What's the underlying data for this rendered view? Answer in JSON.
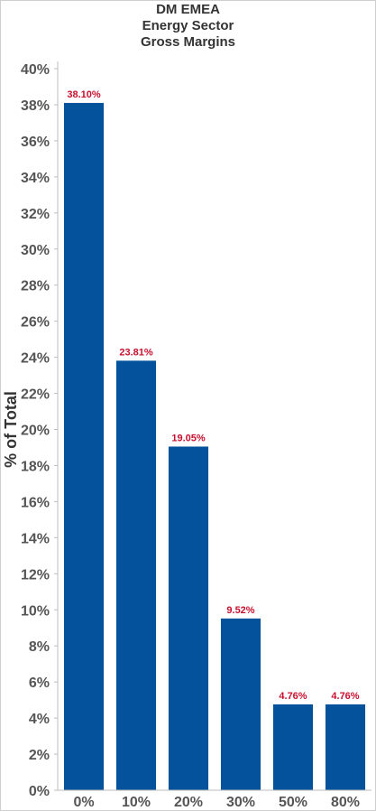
{
  "chart_data": {
    "type": "bar",
    "title": [
      "DM EMEA",
      "Energy Sector",
      "Gross Margins"
    ],
    "ylabel": "% of Total",
    "xlabel": "",
    "categories": [
      "0%",
      "10%",
      "20%",
      "30%",
      "50%",
      "80%"
    ],
    "values": [
      38.1,
      23.81,
      19.05,
      9.52,
      4.76,
      4.76
    ],
    "data_labels": [
      "38.10%",
      "23.81%",
      "19.05%",
      "9.52%",
      "4.76%",
      "4.76%"
    ],
    "ylim": [
      0,
      40
    ],
    "yticks": [
      "0%",
      "2%",
      "4%",
      "6%",
      "8%",
      "10%",
      "12%",
      "14%",
      "16%",
      "18%",
      "20%",
      "22%",
      "24%",
      "26%",
      "28%",
      "30%",
      "32%",
      "34%",
      "36%",
      "38%",
      "40%"
    ],
    "grid": false,
    "legend": "none"
  },
  "colors": {
    "bar": "#03529b",
    "data_label": "#c8102e",
    "axis": "#bdbdbd"
  }
}
